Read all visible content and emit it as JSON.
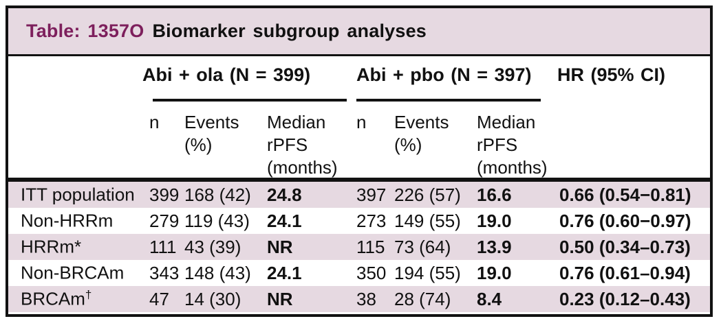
{
  "title": {
    "prefix": "Table: 1357O",
    "text": "Biomarker subgroup analyses"
  },
  "colors": {
    "accent_maroon": "#7d1f5c",
    "stripe_pink": "#e6d9e1",
    "border_black": "#121212"
  },
  "header": {
    "group1": "Abi + ola (N = 399)",
    "group2": "Abi + pbo (N = 397)",
    "hr": "HR (95% CI)",
    "sub_n": "n",
    "sub_events": "Events\n(%)",
    "sub_median": "Median\nrPFS\n(months)"
  },
  "rows": [
    {
      "label": "ITT population",
      "sup": "",
      "g1": {
        "n": "399",
        "events": "168 (42)",
        "median": "24.8"
      },
      "g2": {
        "n": "397",
        "events": "226 (57)",
        "median": "16.6"
      },
      "hr": "0.66 (0.54−0.81)"
    },
    {
      "label": "Non-HRRm",
      "sup": "",
      "g1": {
        "n": "279",
        "events": "119 (43)",
        "median": "24.1"
      },
      "g2": {
        "n": "273",
        "events": "149 (55)",
        "median": "19.0"
      },
      "hr": "0.76 (0.60−0.97)"
    },
    {
      "label": "HRRm*",
      "sup": "",
      "g1": {
        "n": "111",
        "events": "43 (39)",
        "median": "NR"
      },
      "g2": {
        "n": "115",
        "events": "73 (64)",
        "median": "13.9"
      },
      "hr": "0.50 (0.34–0.73)"
    },
    {
      "label": "Non-BRCAm",
      "sup": "",
      "g1": {
        "n": "343",
        "events": "148 (43)",
        "median": "24.1"
      },
      "g2": {
        "n": "350",
        "events": "194 (55)",
        "median": "19.0"
      },
      "hr": "0.76 (0.61–0.94)"
    },
    {
      "label": "BRCAm",
      "sup": "†",
      "g1": {
        "n": "47",
        "events": "14 (30)",
        "median": "NR"
      },
      "g2": {
        "n": "38",
        "events": "28 (74)",
        "median": "8.4"
      },
      "hr": "0.23 (0.12–0.43)"
    }
  ]
}
